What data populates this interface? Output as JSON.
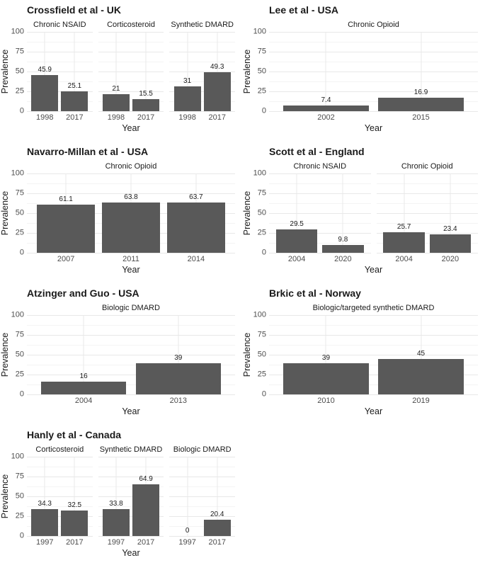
{
  "figure": {
    "background": "#ffffff",
    "layout": {
      "columns": 2,
      "rows": 4,
      "grid": "on",
      "panel_border": "off",
      "axis_lines": "off"
    }
  },
  "colors": {
    "bar_fill": "#595959",
    "grid_major": "#e8e8e8",
    "grid_minor": "#f4f4f4",
    "axis_text": "#4d4d4d",
    "text": "#1a1a1a",
    "background": "#ffffff"
  },
  "chart_data": [
    {
      "type": "bar",
      "title": "Crossfield et al - UK",
      "xlabel": "Year",
      "ylabel": "Prevalence",
      "ylim": [
        0,
        100
      ],
      "yticks": [
        0,
        25,
        50,
        75,
        100
      ],
      "yticks_minor": [
        12.5,
        37.5,
        62.5,
        87.5
      ],
      "facets": [
        {
          "label": "Chronic NSAID",
          "categories": [
            "1998",
            "2017"
          ],
          "values": [
            45.9,
            25.1
          ],
          "value_labels": [
            "45.9",
            "25.1"
          ]
        },
        {
          "label": "Corticosteroid",
          "categories": [
            "1998",
            "2017"
          ],
          "values": [
            21,
            15.5
          ],
          "value_labels": [
            "21",
            "15.5"
          ]
        },
        {
          "label": "Synthetic DMARD",
          "categories": [
            "1998",
            "2017"
          ],
          "values": [
            31,
            49.3
          ],
          "value_labels": [
            "31",
            "49.3"
          ]
        }
      ]
    },
    {
      "type": "bar",
      "title": "Lee et al - USA",
      "xlabel": "Year",
      "ylabel": "Prevalence",
      "ylim": [
        0,
        100
      ],
      "yticks": [
        0,
        25,
        50,
        75,
        100
      ],
      "yticks_minor": [
        12.5,
        37.5,
        62.5,
        87.5
      ],
      "facets": [
        {
          "label": "Chronic Opioid",
          "categories": [
            "2002",
            "2015"
          ],
          "values": [
            7.4,
            16.9
          ],
          "value_labels": [
            "7.4",
            "16.9"
          ]
        }
      ]
    },
    {
      "type": "bar",
      "title": "Navarro-Millan et al - USA",
      "xlabel": "Year",
      "ylabel": "Prevalence",
      "ylim": [
        0,
        100
      ],
      "yticks": [
        0,
        25,
        50,
        75,
        100
      ],
      "yticks_minor": [
        12.5,
        37.5,
        62.5,
        87.5
      ],
      "facets": [
        {
          "label": "Chronic Opioid",
          "categories": [
            "2007",
            "2011",
            "2014"
          ],
          "values": [
            61.1,
            63.8,
            63.7
          ],
          "value_labels": [
            "61.1",
            "63.8",
            "63.7"
          ]
        }
      ]
    },
    {
      "type": "bar",
      "title": "Scott et al - England",
      "xlabel": "Year",
      "ylabel": "Prevalence",
      "ylim": [
        0,
        100
      ],
      "yticks": [
        0,
        25,
        50,
        75,
        100
      ],
      "yticks_minor": [
        12.5,
        37.5,
        62.5,
        87.5
      ],
      "facets": [
        {
          "label": "Chronic NSAID",
          "categories": [
            "2004",
            "2020"
          ],
          "values": [
            29.5,
            9.8
          ],
          "value_labels": [
            "29.5",
            "9.8"
          ]
        },
        {
          "label": "Chronic Opioid",
          "categories": [
            "2004",
            "2020"
          ],
          "values": [
            25.7,
            23.4
          ],
          "value_labels": [
            "25.7",
            "23.4"
          ]
        }
      ]
    },
    {
      "type": "bar",
      "title": "Atzinger and Guo - USA",
      "xlabel": "Year",
      "ylabel": "Prevalence",
      "ylim": [
        0,
        100
      ],
      "yticks": [
        0,
        25,
        50,
        75,
        100
      ],
      "yticks_minor": [
        12.5,
        37.5,
        62.5,
        87.5
      ],
      "facets": [
        {
          "label": "Biologic DMARD",
          "categories": [
            "2004",
            "2013"
          ],
          "values": [
            16,
            39
          ],
          "value_labels": [
            "16",
            "39"
          ]
        }
      ]
    },
    {
      "type": "bar",
      "title": "Brkic et al - Norway",
      "xlabel": "Year",
      "ylabel": "Prevalence",
      "ylim": [
        0,
        100
      ],
      "yticks": [
        0,
        25,
        50,
        75,
        100
      ],
      "yticks_minor": [
        12.5,
        37.5,
        62.5,
        87.5
      ],
      "facets": [
        {
          "label": "Biologic/targeted synthetic DMARD",
          "categories": [
            "2010",
            "2019"
          ],
          "values": [
            39,
            45
          ],
          "value_labels": [
            "39",
            "45"
          ]
        }
      ]
    },
    {
      "type": "bar",
      "title": "Hanly et al - Canada",
      "xlabel": "Year",
      "ylabel": "Prevalence",
      "ylim": [
        0,
        100
      ],
      "yticks": [
        0,
        25,
        50,
        75,
        100
      ],
      "yticks_minor": [
        12.5,
        37.5,
        62.5,
        87.5
      ],
      "facets": [
        {
          "label": "Corticosteroid",
          "categories": [
            "1997",
            "2017"
          ],
          "values": [
            34.3,
            32.5
          ],
          "value_labels": [
            "34.3",
            "32.5"
          ]
        },
        {
          "label": "Synthetic DMARD",
          "categories": [
            "1997",
            "2017"
          ],
          "values": [
            33.8,
            64.9
          ],
          "value_labels": [
            "33.8",
            "64.9"
          ]
        },
        {
          "label": "Biologic DMARD",
          "categories": [
            "1997",
            "2017"
          ],
          "values": [
            0,
            20.4
          ],
          "value_labels": [
            "0",
            "20.4"
          ]
        }
      ]
    }
  ]
}
